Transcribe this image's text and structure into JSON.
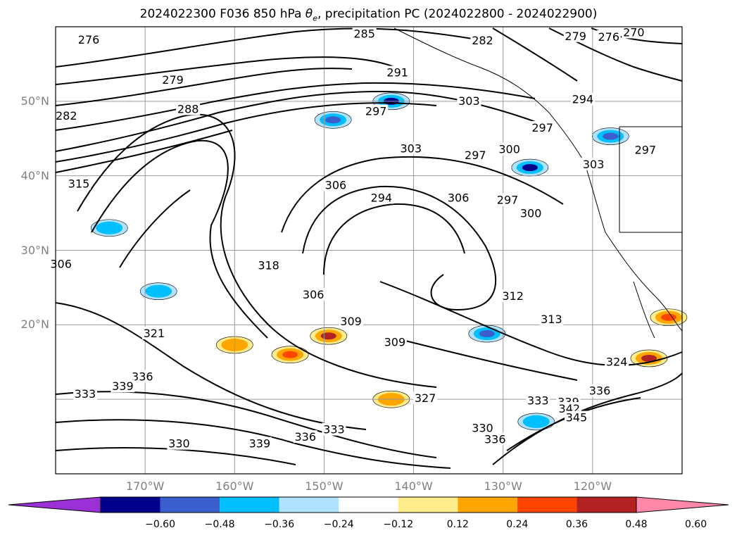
{
  "title": "2024022300 F036 850 hPa θe, precipitation PC (2024022800 - 2024022900)",
  "lat_labels": [
    {
      "text": "50°N",
      "lat": 50
    },
    {
      "text": "40°N",
      "lat": 40
    },
    {
      "text": "30°N",
      "lat": 30
    },
    {
      "text": "20°N",
      "lat": 20
    }
  ],
  "lon_labels": [
    {
      "text": "170°W",
      "lon": -170
    },
    {
      "text": "160°W",
      "lon": -160
    },
    {
      "text": "150°W",
      "lon": -150
    },
    {
      "text": "140°W",
      "lon": -140
    },
    {
      "text": "130°W",
      "lon": -130
    },
    {
      "text": "120°W",
      "lon": -120
    }
  ],
  "colorbar": {
    "ticks": [
      "−0.60",
      "−0.48",
      "−0.36",
      "−0.24",
      "−0.12",
      "0.12",
      "0.24",
      "0.36",
      "0.48",
      "0.60"
    ],
    "colors": [
      "#9b30d6",
      "#00008b",
      "#3a5fcd",
      "#00bfff",
      "#b0e2ff",
      "#ffffff",
      "#ffec8b",
      "#ffa500",
      "#ff4500",
      "#b22222",
      "#ff88aa"
    ]
  },
  "contour_labels": [
    {
      "text": "276",
      "lat": 58.2,
      "lon": -176.3
    },
    {
      "text": "285",
      "lat": 59.0,
      "lon": -145.5
    },
    {
      "text": "282",
      "lat": 58.1,
      "lon": -132.3
    },
    {
      "text": "279",
      "lat": 58.7,
      "lon": -121.9
    },
    {
      "text": "276",
      "lat": 58.6,
      "lon": -118.2
    },
    {
      "text": "270",
      "lat": 59.2,
      "lon": -115.4
    },
    {
      "text": "279",
      "lat": 52.8,
      "lon": -166.9
    },
    {
      "text": "291",
      "lat": 53.8,
      "lon": -141.8
    },
    {
      "text": "303",
      "lat": 50.0,
      "lon": -133.8
    },
    {
      "text": "294",
      "lat": 50.2,
      "lon": -121.1
    },
    {
      "text": "288",
      "lat": 48.9,
      "lon": -165.2
    },
    {
      "text": "297",
      "lat": 48.6,
      "lon": -144.2
    },
    {
      "text": "282",
      "lat": 48.0,
      "lon": -178.8
    },
    {
      "text": "297",
      "lat": 46.4,
      "lon": -125.6
    },
    {
      "text": "303",
      "lat": 43.6,
      "lon": -140.3
    },
    {
      "text": "297",
      "lat": 42.7,
      "lon": -133.1
    },
    {
      "text": "300",
      "lat": 43.5,
      "lon": -129.3
    },
    {
      "text": "303",
      "lat": 41.5,
      "lon": -119.9
    },
    {
      "text": "297",
      "lat": 43.4,
      "lon": -114.1
    },
    {
      "text": "315",
      "lat": 38.9,
      "lon": -177.4
    },
    {
      "text": "306",
      "lat": 38.7,
      "lon": -148.7
    },
    {
      "text": "294",
      "lat": 37.0,
      "lon": -143.6
    },
    {
      "text": "306",
      "lat": 37.0,
      "lon": -135.0
    },
    {
      "text": "297",
      "lat": 36.7,
      "lon": -129.5
    },
    {
      "text": "300",
      "lat": 34.9,
      "lon": -126.9
    },
    {
      "text": "306",
      "lat": 28.1,
      "lon": -179.4
    },
    {
      "text": "318",
      "lat": 27.9,
      "lon": -156.2
    },
    {
      "text": "306",
      "lat": 24.0,
      "lon": -151.2
    },
    {
      "text": "312",
      "lat": 23.8,
      "lon": -128.9
    },
    {
      "text": "309",
      "lat": 20.4,
      "lon": -147.0
    },
    {
      "text": "313",
      "lat": 20.7,
      "lon": -124.6
    },
    {
      "text": "321",
      "lat": 18.8,
      "lon": -169.0
    },
    {
      "text": "309",
      "lat": 17.6,
      "lon": -142.1
    },
    {
      "text": "324",
      "lat": 15.0,
      "lon": -117.3
    },
    {
      "text": "336",
      "lat": 13.0,
      "lon": -170.3
    },
    {
      "text": "339",
      "lat": 11.7,
      "lon": -172.5
    },
    {
      "text": "333",
      "lat": 10.7,
      "lon": -176.7
    },
    {
      "text": "336",
      "lat": 11.1,
      "lon": -119.2
    },
    {
      "text": "327",
      "lat": 10.1,
      "lon": -138.7
    },
    {
      "text": "333",
      "lat": 9.8,
      "lon": -126.1
    },
    {
      "text": "339",
      "lat": 9.6,
      "lon": -122.7
    },
    {
      "text": "342",
      "lat": 8.7,
      "lon": -122.6
    },
    {
      "text": "345",
      "lat": 7.5,
      "lon": -121.8
    },
    {
      "text": "333",
      "lat": 5.9,
      "lon": -148.9
    },
    {
      "text": "330",
      "lat": 6.1,
      "lon": -132.3
    },
    {
      "text": "336",
      "lat": 4.9,
      "lon": -152.1
    },
    {
      "text": "336",
      "lat": 4.6,
      "lon": -130.9
    },
    {
      "text": "339",
      "lat": 4.0,
      "lon": -157.2
    },
    {
      "text": "330",
      "lat": 4.0,
      "lon": -166.2
    }
  ],
  "precip_patches": [
    {
      "name": "patch-gulf-alaska",
      "lat": 50.0,
      "lon": -142.5,
      "value": -0.5
    },
    {
      "name": "patch-north-central",
      "lat": 47.5,
      "lon": -149.0,
      "value": -0.4
    },
    {
      "name": "patch-nevada",
      "lat": 45.3,
      "lon": -118.0,
      "value": -0.4
    },
    {
      "name": "patch-california",
      "lat": 41.1,
      "lon": -127.0,
      "value": -0.55
    },
    {
      "name": "patch-off-baja",
      "lat": 18.8,
      "lon": -131.8,
      "value": -0.45
    },
    {
      "name": "patch-hawaii-east",
      "lat": 18.5,
      "lon": -149.5,
      "value": 0.55
    },
    {
      "name": "patch-hawaii-south",
      "lat": 16.0,
      "lon": -153.8,
      "value": 0.45
    },
    {
      "name": "patch-hawaii-west",
      "lat": 17.3,
      "lon": -160.0,
      "value": 0.3
    },
    {
      "name": "patch-south-central",
      "lat": 10.0,
      "lon": -142.5,
      "value": 0.35
    },
    {
      "name": "patch-mexico",
      "lat": 15.5,
      "lon": -113.7,
      "value": 0.5
    },
    {
      "name": "patch-mexico-north",
      "lat": 21.0,
      "lon": -111.5,
      "value": 0.45
    },
    {
      "name": "patch-southeast",
      "lat": 7.0,
      "lon": -126.3,
      "value": -0.3
    },
    {
      "name": "patch-west-1",
      "lat": 24.5,
      "lon": -168.5,
      "value": -0.35
    },
    {
      "name": "patch-west-2",
      "lat": 33.0,
      "lon": -174.0,
      "value": -0.25
    }
  ]
}
